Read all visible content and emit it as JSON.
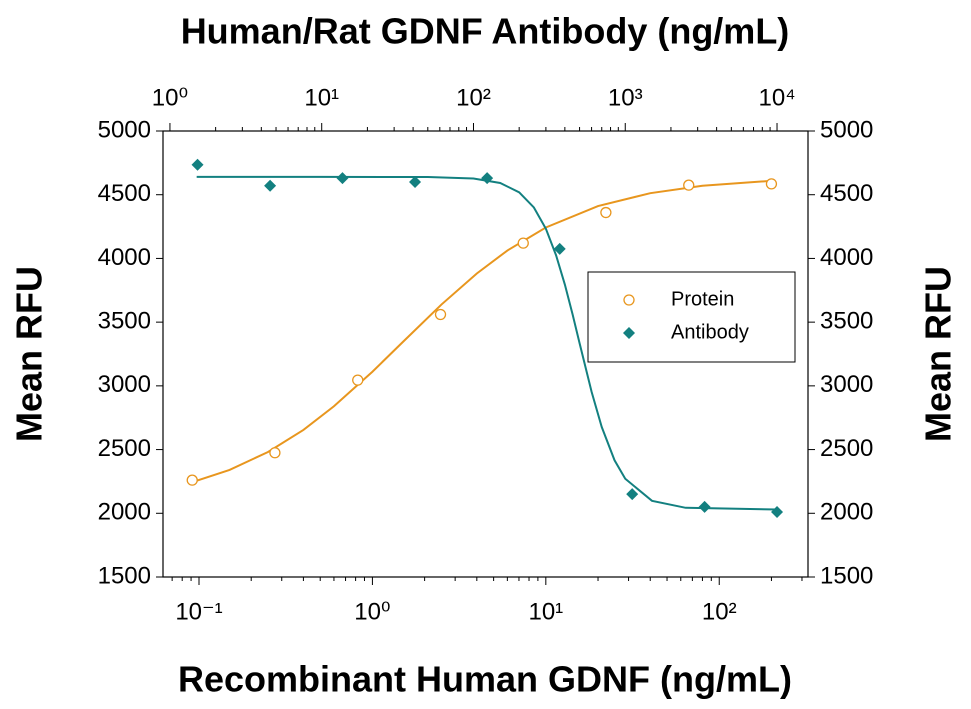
{
  "chart_data": {
    "type": "scatter",
    "title": "Human/Rat GDNF Antibody (ng/mL)",
    "xlabel": "Recombinant Human GDNF (ng/mL)",
    "ylabel": "Mean RFU",
    "y2label": "Mean RFU",
    "xscale": "log",
    "x2scale": "log",
    "xlim": [
      0.062,
      325
    ],
    "xticks": [
      {
        "value": 0.1,
        "label": "10⁻¹"
      },
      {
        "value": 1,
        "label": "10⁰"
      },
      {
        "value": 10,
        "label": "10¹"
      },
      {
        "value": 100,
        "label": "10²"
      }
    ],
    "x2lim": [
      0.9,
      16000
    ],
    "x2ticks": [
      {
        "value": 1,
        "label": "10⁰"
      },
      {
        "value": 10,
        "label": "10¹"
      },
      {
        "value": 100,
        "label": "10²"
      },
      {
        "value": 1000,
        "label": "10³"
      },
      {
        "value": 10000,
        "label": "10⁴"
      }
    ],
    "ylim": [
      1500,
      5000
    ],
    "yticks": [
      1500,
      2000,
      2500,
      3000,
      3500,
      4000,
      4500,
      5000
    ],
    "y2lim": [
      1500,
      5000
    ],
    "y2ticks": [
      1500,
      2000,
      2500,
      3000,
      3500,
      4000,
      4500,
      5000
    ],
    "legend": "right",
    "series": [
      {
        "name": "Protein",
        "color": "#e8961e",
        "marker": "circle",
        "axis": "x",
        "x": [
          0.0914,
          0.274,
          0.823,
          2.47,
          7.41,
          22.2,
          66.7,
          200
        ],
        "values": [
          2260,
          2475,
          3045,
          3560,
          4120,
          4360,
          4575,
          4585
        ],
        "fit": {
          "x": [
            0.09,
            0.15,
            0.25,
            0.4,
            0.6,
            1,
            1.5,
            2.5,
            4,
            6,
            10,
            20,
            40,
            80,
            200
          ],
          "values": [
            2241,
            2340,
            2481,
            2654,
            2840,
            3111,
            3345,
            3638,
            3882,
            4062,
            4243,
            4411,
            4512,
            4570,
            4609
          ]
        }
      },
      {
        "name": "Antibody",
        "color": "#138080",
        "marker": "diamond",
        "axis": "x2",
        "x": [
          1.52,
          4.57,
          13.7,
          41.2,
          123,
          370,
          1111,
          3333,
          10000
        ],
        "values": [
          4735,
          4570,
          4630,
          4600,
          4630,
          4075,
          2150,
          2050,
          2010
        ],
        "fit": {
          "x": [
            1.5,
            10,
            50,
            100,
            150,
            200,
            250,
            300,
            350,
            400,
            450,
            500,
            600,
            700,
            850,
            1000,
            1500,
            2500,
            10000
          ],
          "values": [
            4640,
            4640,
            4639,
            4627,
            4592,
            4519,
            4400,
            4233,
            4025,
            3795,
            3560,
            3335,
            2954,
            2677,
            2416,
            2271,
            2098,
            2043,
            2030
          ]
        }
      }
    ]
  }
}
